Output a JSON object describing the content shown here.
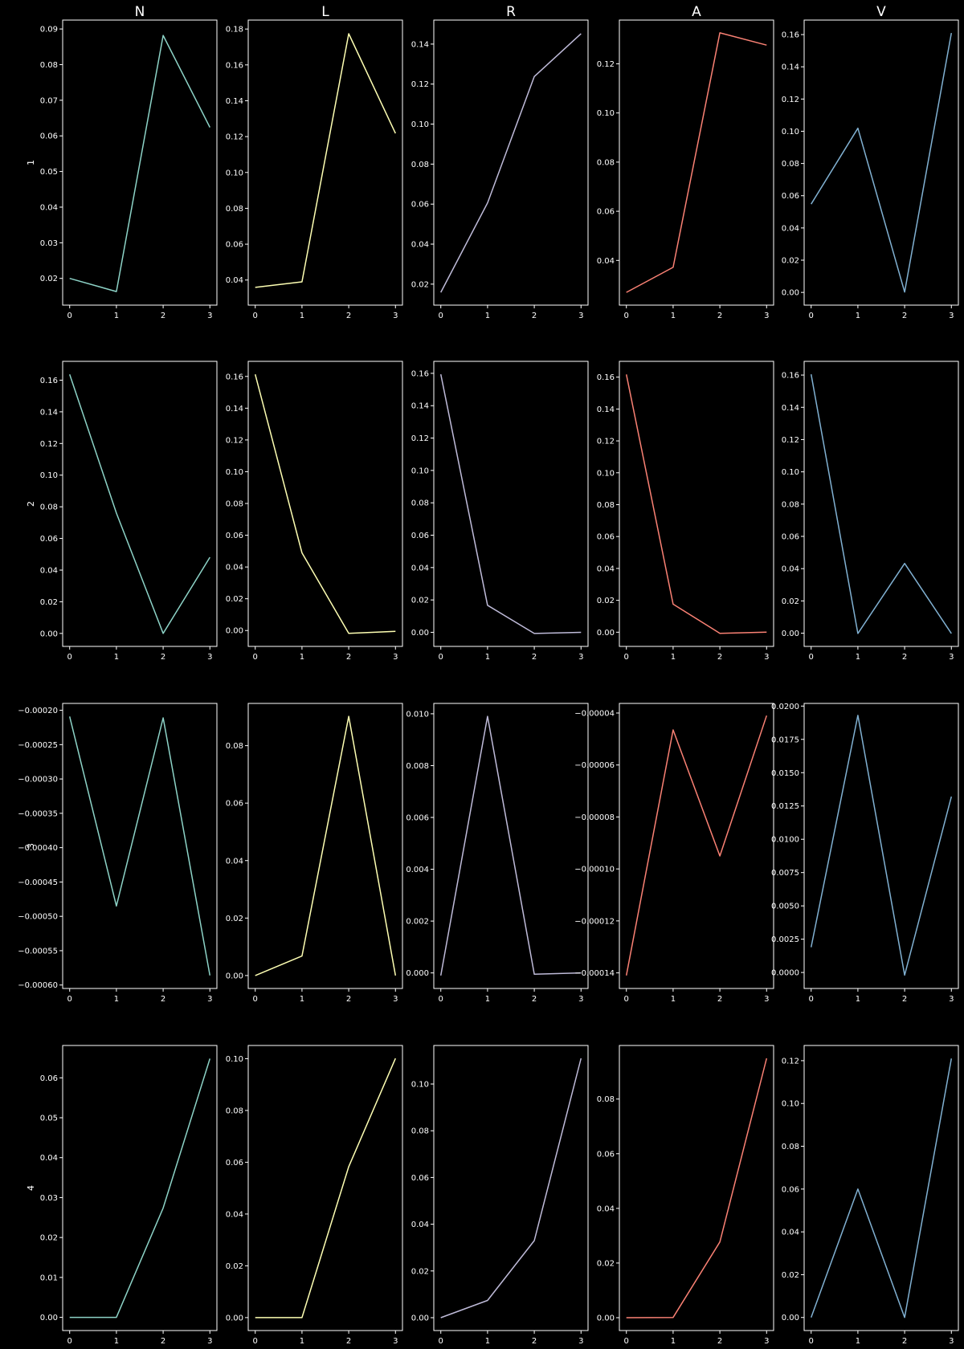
{
  "background": "#000000",
  "axis_color": "#ffffff",
  "column_titles": [
    "N",
    "L",
    "R",
    "A",
    "V"
  ],
  "row_labels": [
    "1",
    "2",
    "3",
    "4"
  ],
  "column_colors": [
    "#8dd3c7",
    "#feffb3",
    "#bfbbd9",
    "#fa8174",
    "#81b1d2"
  ],
  "chart_data": [
    {
      "type": "line",
      "row": "1",
      "column": "N",
      "x": [
        0,
        1,
        2,
        3
      ],
      "y": [
        0.02,
        0.0163,
        0.0882,
        0.0624
      ],
      "ylim": [
        0.0125,
        0.0925
      ],
      "yticks": [
        "0.02",
        "0.03",
        "0.04",
        "0.05",
        "0.06",
        "0.07",
        "0.08",
        "0.09"
      ]
    },
    {
      "type": "line",
      "row": "1",
      "column": "L",
      "x": [
        0,
        1,
        2,
        3
      ],
      "y": [
        0.0359,
        0.039,
        0.1774,
        0.1218
      ],
      "ylim": [
        0.026,
        0.185
      ],
      "yticks": [
        "0.04",
        "0.06",
        "0.08",
        "0.10",
        "0.12",
        "0.14",
        "0.16",
        "0.18"
      ]
    },
    {
      "type": "line",
      "row": "1",
      "column": "R",
      "x": [
        0,
        1,
        2,
        3
      ],
      "y": [
        0.0159,
        0.0606,
        0.1238,
        0.1452
      ],
      "ylim": [
        0.0095,
        0.152
      ],
      "yticks": [
        "0.02",
        "0.04",
        "0.06",
        "0.08",
        "0.10",
        "0.12",
        "0.14"
      ]
    },
    {
      "type": "line",
      "row": "1",
      "column": "A",
      "x": [
        0,
        1,
        2,
        3
      ],
      "y": [
        0.027,
        0.0372,
        0.1326,
        0.1276
      ],
      "ylim": [
        0.0218,
        0.1378
      ],
      "yticks": [
        "0.04",
        "0.06",
        "0.08",
        "0.10",
        "0.12"
      ]
    },
    {
      "type": "line",
      "row": "1",
      "column": "V",
      "x": [
        0,
        1,
        2,
        3
      ],
      "y": [
        0.0548,
        0.1019,
        0.0002,
        0.161
      ],
      "ylim": [
        -0.0079,
        0.169
      ],
      "yticks": [
        "0.00",
        "0.02",
        "0.04",
        "0.06",
        "0.08",
        "0.10",
        "0.12",
        "0.14",
        "0.16"
      ]
    },
    {
      "type": "line",
      "row": "2",
      "column": "N",
      "x": [
        0,
        1,
        2,
        3
      ],
      "y": [
        0.1637,
        0.076,
        0.0,
        0.0481
      ],
      "ylim": [
        -0.0082,
        0.1719
      ],
      "yticks": [
        "0.00",
        "0.02",
        "0.04",
        "0.06",
        "0.08",
        "0.10",
        "0.12",
        "0.14",
        "0.16"
      ]
    },
    {
      "type": "line",
      "row": "2",
      "column": "L",
      "x": [
        0,
        1,
        2,
        3
      ],
      "y": [
        0.1613,
        0.0489,
        -0.0018,
        -0.0005
      ],
      "ylim": [
        -0.01,
        0.1695
      ],
      "yticks": [
        "0.00",
        "0.02",
        "0.04",
        "0.06",
        "0.08",
        "0.10",
        "0.12",
        "0.14",
        "0.16"
      ]
    },
    {
      "type": "line",
      "row": "2",
      "column": "R",
      "x": [
        0,
        1,
        2,
        3
      ],
      "y": [
        0.1594,
        0.0167,
        -0.0007,
        0.0
      ],
      "ylim": [
        -0.0087,
        0.1674
      ],
      "yticks": [
        "0.00",
        "0.02",
        "0.04",
        "0.06",
        "0.08",
        "0.10",
        "0.12",
        "0.14",
        "0.16"
      ]
    },
    {
      "type": "line",
      "row": "2",
      "column": "A",
      "x": [
        0,
        1,
        2,
        3
      ],
      "y": [
        0.1617,
        0.0176,
        -0.0007,
        0.0
      ],
      "ylim": [
        -0.0089,
        0.1699
      ],
      "yticks": [
        "0.00",
        "0.02",
        "0.04",
        "0.06",
        "0.08",
        "0.10",
        "0.12",
        "0.14",
        "0.16"
      ]
    },
    {
      "type": "line",
      "row": "2",
      "column": "V",
      "x": [
        0,
        1,
        2,
        3
      ],
      "y": [
        0.1605,
        -0.0002,
        0.0432,
        -0.0002
      ],
      "ylim": [
        -0.0082,
        0.1685
      ],
      "yticks": [
        "0.00",
        "0.02",
        "0.04",
        "0.06",
        "0.08",
        "0.10",
        "0.12",
        "0.14",
        "0.16"
      ]
    },
    {
      "type": "line",
      "row": "3",
      "column": "N",
      "x": [
        0,
        1,
        2,
        3
      ],
      "y": [
        -0.000209,
        -0.000485,
        -0.000211,
        -0.000586
      ],
      "ylim": [
        -0.000605,
        -0.00019
      ],
      "yticks": [
        "−0.00060",
        "−0.00055",
        "−0.00050",
        "−0.00045",
        "−0.00040",
        "−0.00035",
        "−0.00030",
        "−0.00025",
        "−0.00020"
      ]
    },
    {
      "type": "line",
      "row": "3",
      "column": "L",
      "x": [
        0,
        1,
        2,
        3
      ],
      "y": [
        0.0,
        0.0068,
        0.0902,
        0.0
      ],
      "ylim": [
        -0.0045,
        0.0947
      ],
      "yticks": [
        "0.00",
        "0.02",
        "0.04",
        "0.06",
        "0.08"
      ]
    },
    {
      "type": "line",
      "row": "3",
      "column": "R",
      "x": [
        0,
        1,
        2,
        3
      ],
      "y": [
        -0.0001,
        0.0099,
        -5e-05,
        0.0
      ],
      "ylim": [
        -0.0006,
        0.0104
      ],
      "yticks": [
        "0.000",
        "0.002",
        "0.004",
        "0.006",
        "0.008",
        "0.010"
      ]
    },
    {
      "type": "line",
      "row": "3",
      "column": "A",
      "x": [
        0,
        1,
        2,
        3
      ],
      "y": [
        -0.000141,
        -4.65e-05,
        -9.5e-05,
        -4.1e-05
      ],
      "ylim": [
        -0.000146,
        -3.63e-05
      ],
      "yticks": [
        "−0.00014",
        "−0.00012",
        "−0.00010",
        "−0.00008",
        "−0.00006",
        "−0.00004"
      ]
    },
    {
      "type": "line",
      "row": "3",
      "column": "V",
      "x": [
        0,
        1,
        2,
        3
      ],
      "y": [
        0.0019,
        0.0193,
        -0.0002,
        0.0132
      ],
      "ylim": [
        -0.0012,
        0.0202
      ],
      "yticks": [
        "0.0000",
        "0.0025",
        "0.0050",
        "0.0075",
        "0.0100",
        "0.0125",
        "0.0150",
        "0.0175",
        "0.0200"
      ]
    },
    {
      "type": "line",
      "row": "4",
      "column": "N",
      "x": [
        0,
        1,
        2,
        3
      ],
      "y": [
        0.0,
        0.0,
        0.0274,
        0.0648
      ],
      "ylim": [
        -0.0033,
        0.0681
      ],
      "yticks": [
        "0.00",
        "0.01",
        "0.02",
        "0.03",
        "0.04",
        "0.05",
        "0.06"
      ]
    },
    {
      "type": "line",
      "row": "4",
      "column": "L",
      "x": [
        0,
        1,
        2,
        3
      ],
      "y": [
        0.0,
        0.0,
        0.0583,
        0.1001
      ],
      "ylim": [
        -0.005,
        0.1051
      ],
      "yticks": [
        "0.00",
        "0.02",
        "0.04",
        "0.06",
        "0.08",
        "0.10"
      ]
    },
    {
      "type": "line",
      "row": "4",
      "column": "R",
      "x": [
        0,
        1,
        2,
        3
      ],
      "y": [
        0.0,
        0.0074,
        0.033,
        0.111
      ],
      "ylim": [
        -0.0055,
        0.1165
      ],
      "yticks": [
        "0.00",
        "0.02",
        "0.04",
        "0.06",
        "0.08",
        "0.10"
      ]
    },
    {
      "type": "line",
      "row": "4",
      "column": "A",
      "x": [
        0,
        1,
        2,
        3
      ],
      "y": [
        0.0,
        0.0001,
        0.0277,
        0.0949
      ],
      "ylim": [
        -0.0047,
        0.0996
      ],
      "yticks": [
        "0.00",
        "0.02",
        "0.04",
        "0.06",
        "0.08"
      ]
    },
    {
      "type": "line",
      "row": "4",
      "column": "V",
      "x": [
        0,
        1,
        2,
        3
      ],
      "y": [
        0.0,
        0.06,
        0.0,
        0.121
      ],
      "ylim": [
        -0.0061,
        0.1271
      ],
      "yticks": [
        "0.00",
        "0.02",
        "0.04",
        "0.06",
        "0.08",
        "0.10",
        "0.12"
      ]
    }
  ]
}
